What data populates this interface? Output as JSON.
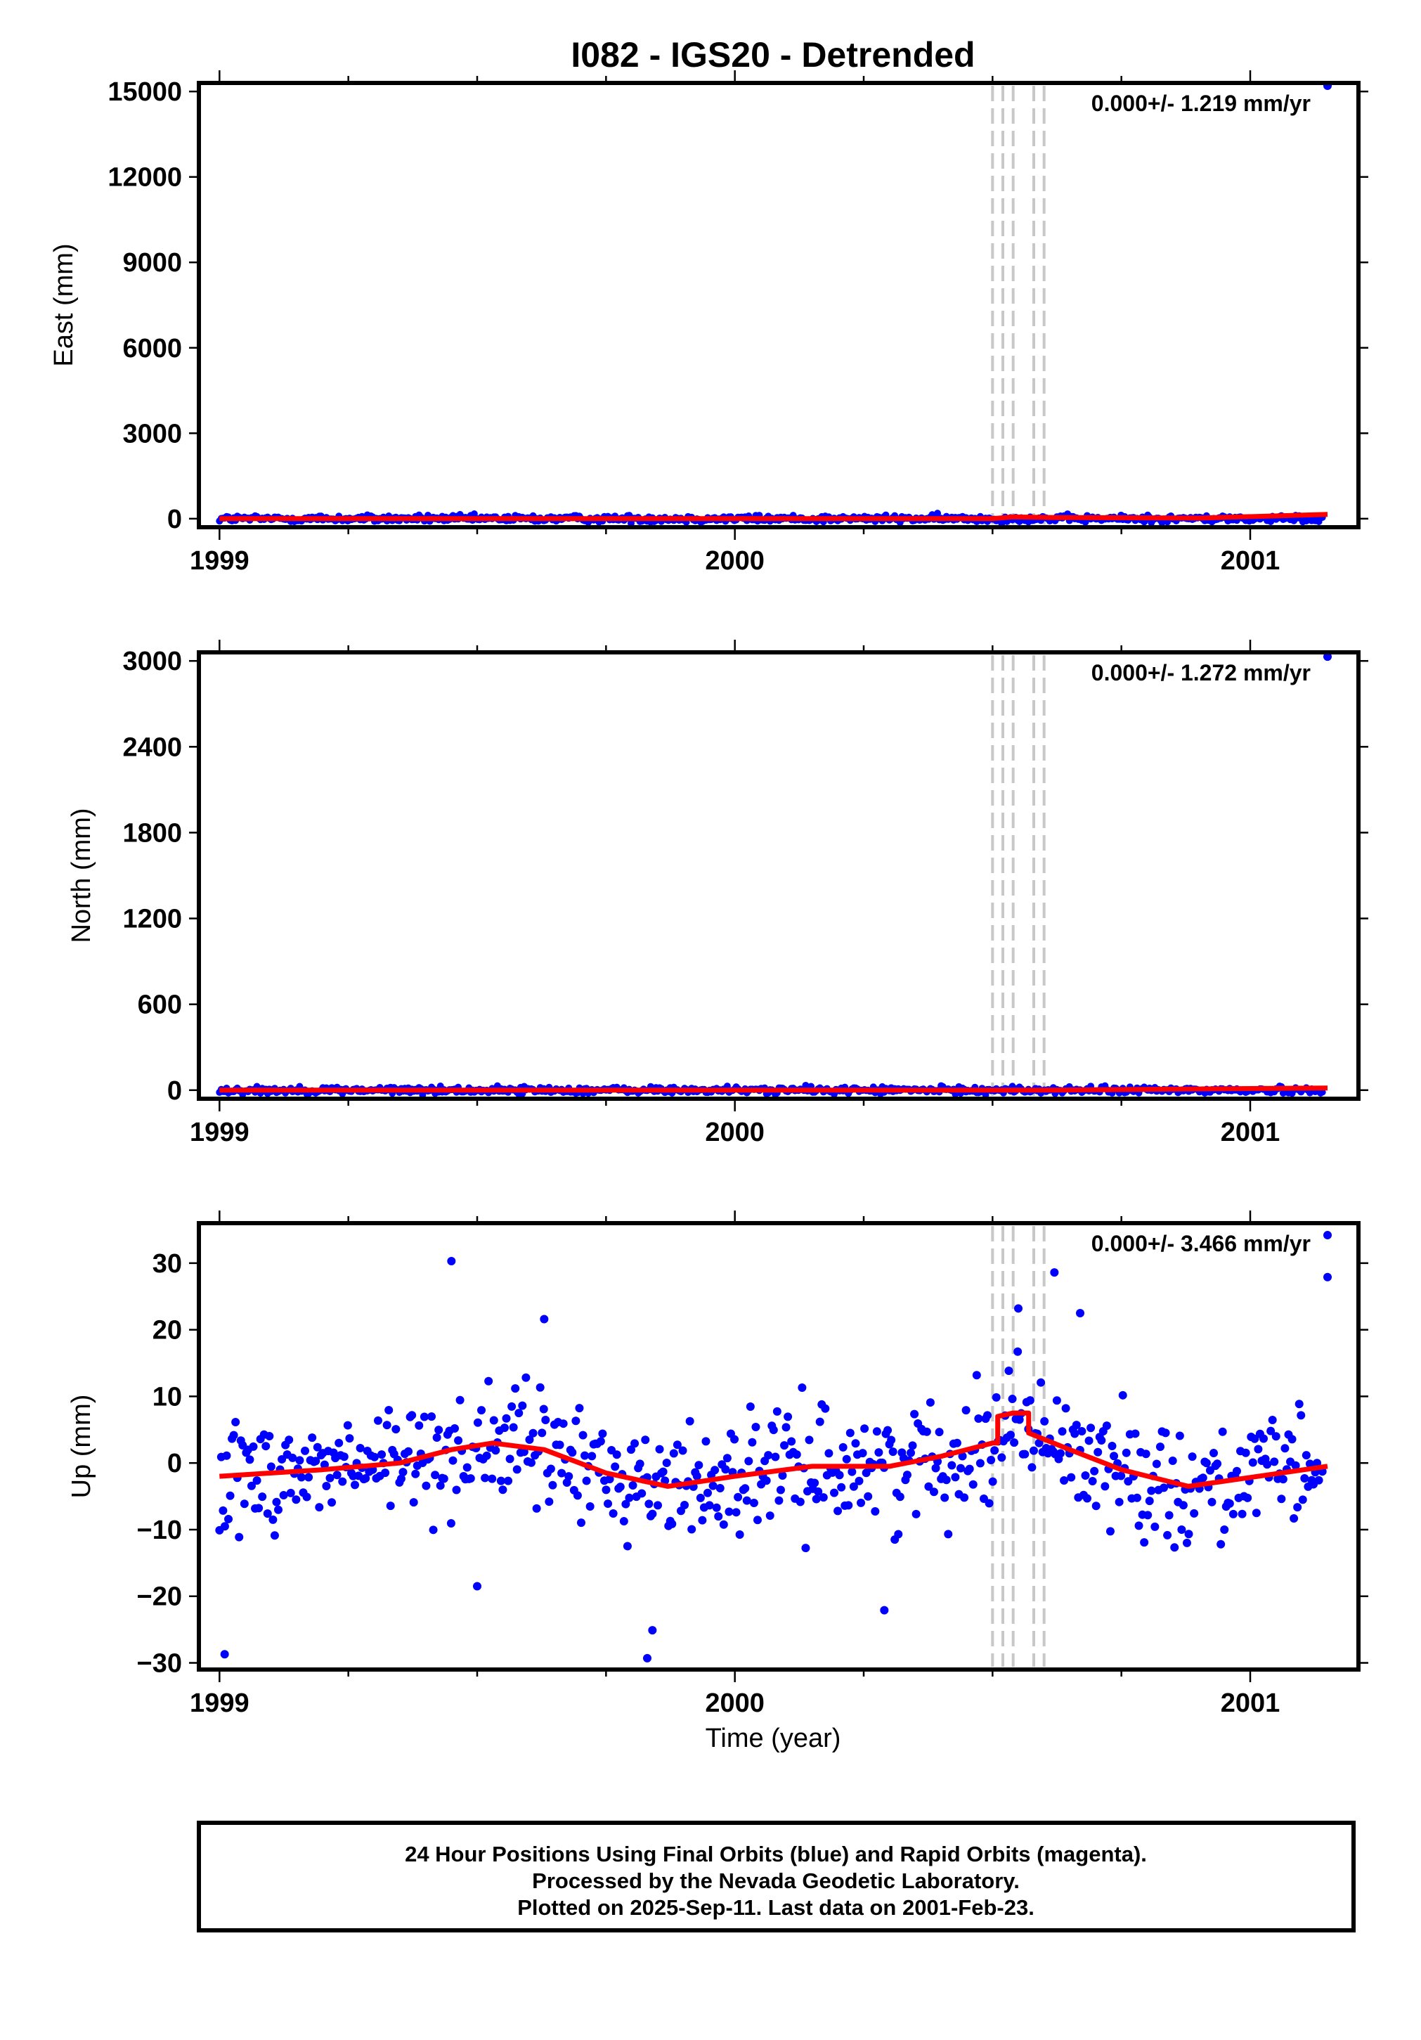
{
  "footer": {
    "line1": "24 Hour Positions Using Final Orbits (blue) and Rapid Orbits (magenta).",
    "line2": "Processed by the Nevada Geodetic Laboratory.",
    "line3": "Plotted on 2025-Sep-11. Last data on 2001-Feb-23."
  },
  "colors": {
    "final": "#0000ff",
    "rapid": "#ff00ff",
    "model": "#ff0000",
    "events": "#c8c8c8"
  },
  "chart_data": [
    {
      "type": "scatter",
      "title": "I082 - IGS20 - Detrended",
      "ylabel": "East (mm)",
      "xlabel": "",
      "rate": "0.000+/- 1.219 mm/yr",
      "xlim": [
        1998.96,
        2001.21
      ],
      "ylim": [
        -300,
        15300
      ],
      "yticks": [
        0,
        3000,
        6000,
        9000,
        12000,
        15000
      ],
      "ytick_labels": [
        "0",
        "3000",
        "6000",
        "9000",
        "12000",
        "15000"
      ],
      "xticks": [
        1999,
        2000,
        2001
      ],
      "xtick_labels": [
        "1999",
        "2000",
        "2001"
      ],
      "event_lines": [
        2000.5,
        2000.52,
        2000.54,
        2000.58,
        2000.6
      ],
      "outliers": [
        {
          "x": 2001.15,
          "y": 15200
        }
      ],
      "model": [
        [
          1999.0,
          0
        ],
        [
          2000.5,
          0
        ],
        [
          2000.54,
          60
        ],
        [
          2000.62,
          40
        ],
        [
          2000.9,
          20
        ],
        [
          2001.15,
          150
        ]
      ],
      "grid": false
    },
    {
      "type": "scatter",
      "title": "",
      "ylabel": "North (mm)",
      "xlabel": "",
      "rate": "0.000+/- 1.272 mm/yr",
      "xlim": [
        1998.96,
        2001.21
      ],
      "ylim": [
        -60,
        3060
      ],
      "yticks": [
        0,
        600,
        1200,
        1800,
        2400,
        3000
      ],
      "ytick_labels": [
        "0",
        "600",
        "1200",
        "1800",
        "2400",
        "3000"
      ],
      "xticks": [
        1999,
        2000,
        2001
      ],
      "xtick_labels": [
        "1999",
        "2000",
        "2001"
      ],
      "event_lines": [
        2000.5,
        2000.52,
        2000.54,
        2000.58,
        2000.6
      ],
      "outliers": [
        {
          "x": 2001.15,
          "y": 3030
        }
      ],
      "model": [
        [
          1999.0,
          0
        ],
        [
          2000.5,
          0
        ],
        [
          2000.6,
          0
        ],
        [
          2001.15,
          15
        ]
      ],
      "grid": false
    },
    {
      "type": "scatter",
      "title": "",
      "ylabel": "Up (mm)",
      "xlabel": "Time (year)",
      "rate": "0.000+/- 3.466 mm/yr",
      "xlim": [
        1998.96,
        2001.21
      ],
      "ylim": [
        -31,
        36
      ],
      "yticks": [
        -30,
        -20,
        -10,
        0,
        10,
        20,
        30
      ],
      "ytick_labels": [
        "−30",
        "−20",
        "−10",
        "0",
        "10",
        "20",
        "30"
      ],
      "xticks": [
        1999,
        2000,
        2001
      ],
      "xtick_labels": [
        "1999",
        "2000",
        "2001"
      ],
      "event_lines": [
        2000.5,
        2000.52,
        2000.54,
        2000.58,
        2000.6
      ],
      "noise_sigma": 7,
      "outliers": [
        {
          "x": 1999.01,
          "y": -28.7
        },
        {
          "x": 1999.45,
          "y": 30.3
        },
        {
          "x": 1999.83,
          "y": -29.3
        },
        {
          "x": 1999.63,
          "y": 21.6
        },
        {
          "x": 2000.62,
          "y": 28.6
        },
        {
          "x": 2000.55,
          "y": 23.2
        },
        {
          "x": 2000.67,
          "y": 22.5
        },
        {
          "x": 2001.15,
          "y": 34.2
        },
        {
          "x": 2001.15,
          "y": 27.9
        },
        {
          "x": 1999.84,
          "y": -25.1
        },
        {
          "x": 2000.29,
          "y": -22.1
        },
        {
          "x": 1999.5,
          "y": -18.5
        }
      ],
      "model": [
        [
          1999.0,
          -2
        ],
        [
          1999.2,
          -1
        ],
        [
          1999.35,
          0
        ],
        [
          1999.45,
          2
        ],
        [
          1999.53,
          3
        ],
        [
          1999.63,
          2
        ],
        [
          1999.75,
          -1.5
        ],
        [
          1999.87,
          -3.5
        ],
        [
          2000.0,
          -2
        ],
        [
          2000.15,
          -0.5
        ],
        [
          2000.3,
          -0.5
        ],
        [
          2000.4,
          1
        ],
        [
          2000.5,
          3
        ],
        [
          2000.51,
          3
        ],
        [
          2000.51,
          7
        ],
        [
          2000.54,
          7.5
        ],
        [
          2000.57,
          7.5
        ],
        [
          2000.57,
          4.5
        ],
        [
          2000.65,
          2
        ],
        [
          2000.75,
          -1
        ],
        [
          2000.88,
          -3.5
        ],
        [
          2000.97,
          -2.5
        ],
        [
          2001.15,
          -0.5
        ]
      ],
      "grid": false
    }
  ]
}
